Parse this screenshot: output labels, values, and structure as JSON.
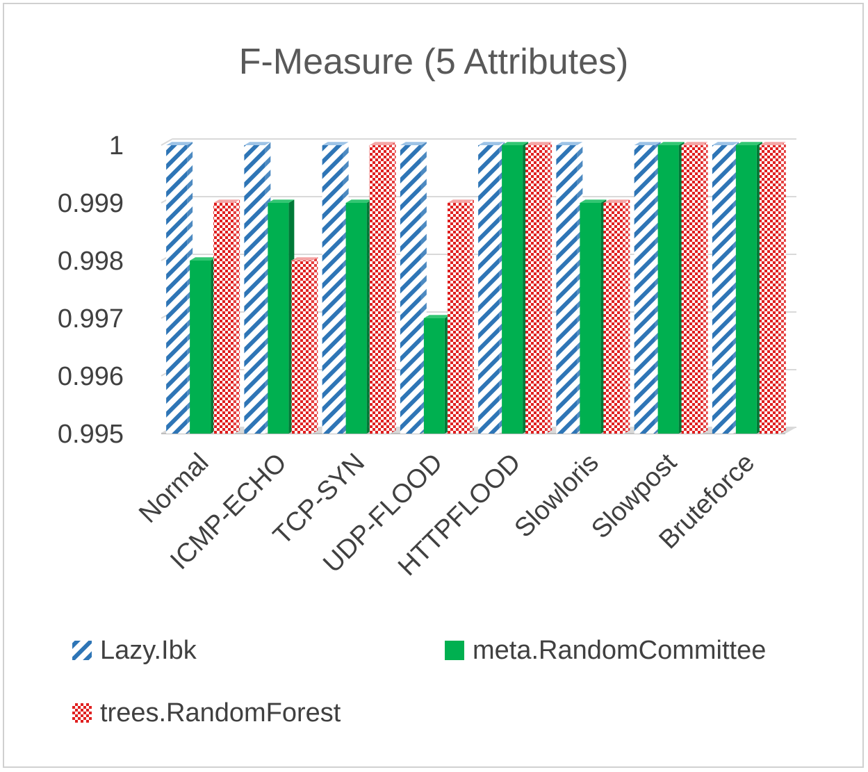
{
  "chart_data": {
    "type": "bar",
    "title": "F-Measure (5 Attributes)",
    "xlabel": "",
    "ylabel": "",
    "categories": [
      "Normal",
      "ICMP-ECHO",
      "TCP-SYN",
      "UDP-FLOOD",
      "HTTPFLOOD",
      "Slowloris",
      "Slowpost",
      "Bruteforce"
    ],
    "yticks": [
      "0.995",
      "0.996",
      "0.997",
      "0.998",
      "0.999",
      "1"
    ],
    "ylim": [
      0.995,
      1.0
    ],
    "grid": true,
    "legend_position": "bottom",
    "series": [
      {
        "name": "Lazy.Ibk",
        "pattern": "blue-diagonal-stripes",
        "color": "#2e75b6",
        "values": [
          1.0,
          1.0,
          1.0,
          1.0,
          1.0,
          1.0,
          1.0,
          1.0
        ]
      },
      {
        "name": "meta.RandomCommittee",
        "pattern": "solid",
        "color": "#00b050",
        "values": [
          0.998,
          0.999,
          0.999,
          0.997,
          1.0,
          0.999,
          1.0,
          1.0
        ]
      },
      {
        "name": "trees.RandomForest",
        "pattern": "red-checker",
        "color": "#e02020",
        "values": [
          0.999,
          0.998,
          1.0,
          0.999,
          1.0,
          0.999,
          1.0,
          1.0
        ]
      }
    ]
  }
}
